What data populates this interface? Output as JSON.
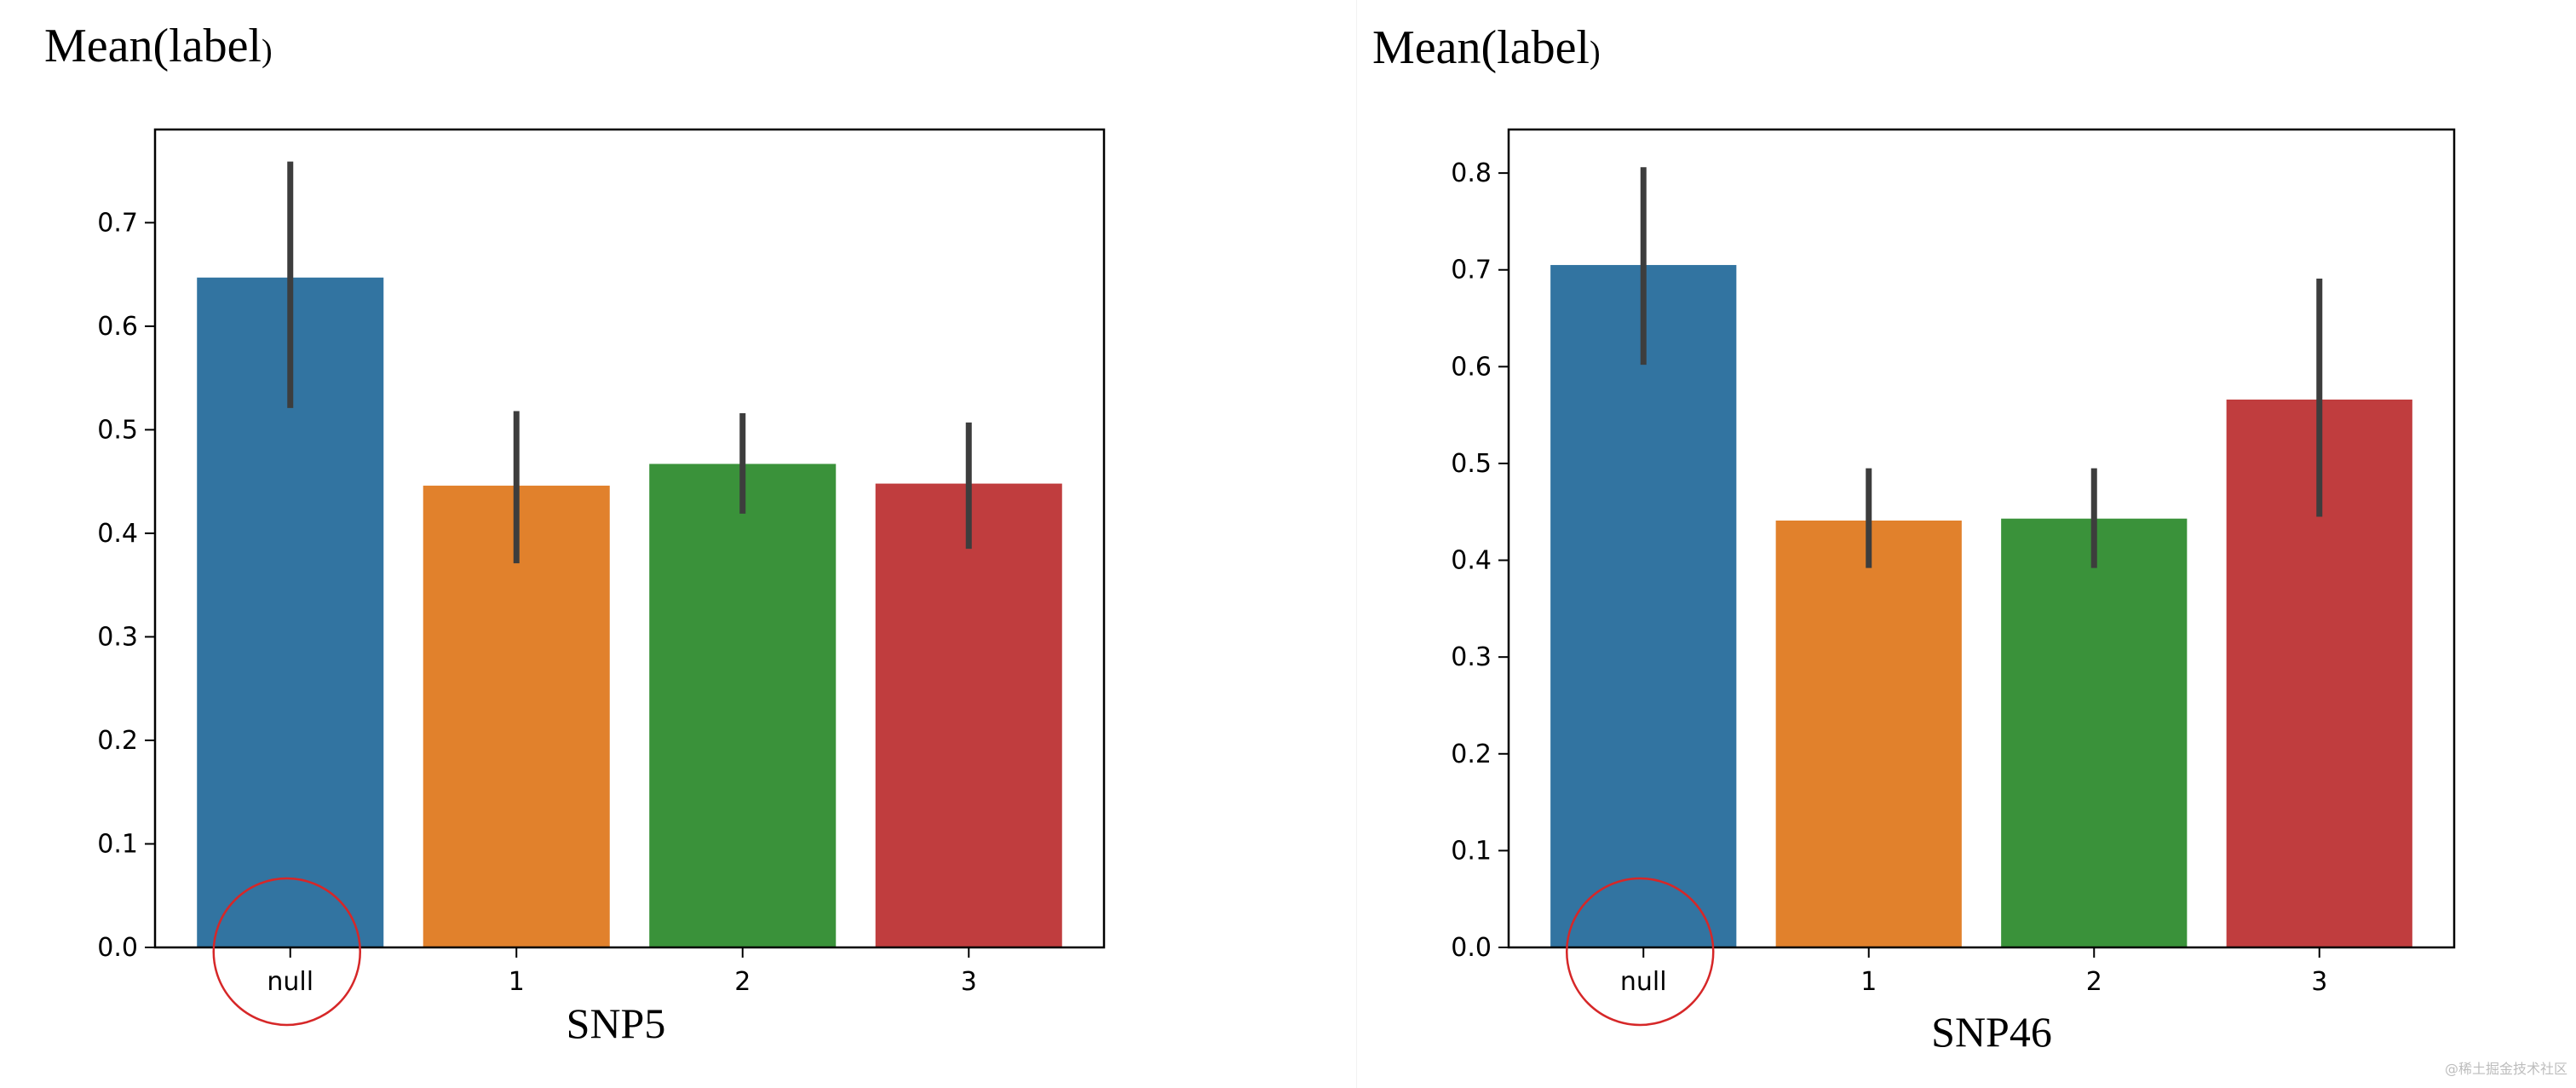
{
  "chart_data": [
    {
      "type": "bar",
      "ylabel": "Mean(label",
      "ylabel_suffix": ")",
      "xlabel": "SNP5",
      "categories": [
        "null",
        "1",
        "2",
        "3"
      ],
      "values": [
        0.647,
        0.446,
        0.467,
        0.448
      ],
      "error_low": [
        0.521,
        0.371,
        0.419,
        0.385
      ],
      "error_high": [
        0.759,
        0.518,
        0.516,
        0.507
      ],
      "colors": [
        "#3274a1",
        "#e1812c",
        "#3a923a",
        "#c03d3e"
      ],
      "ylim": [
        0,
        0.79
      ],
      "yticks": [
        0.0,
        0.1,
        0.2,
        0.3,
        0.4,
        0.5,
        0.6,
        0.7
      ],
      "annotation": "red circle around the null category label",
      "grid": false
    },
    {
      "type": "bar",
      "ylabel": "Mean(label",
      "ylabel_suffix": ")",
      "xlabel": "SNP46",
      "categories": [
        "null",
        "1",
        "2",
        "3"
      ],
      "values": [
        0.705,
        0.441,
        0.443,
        0.566
      ],
      "error_low": [
        0.602,
        0.392,
        0.392,
        0.445
      ],
      "error_high": [
        0.806,
        0.495,
        0.495,
        0.691
      ],
      "colors": [
        "#3274a1",
        "#e1812c",
        "#3a923a",
        "#c03d3e"
      ],
      "ylim": [
        0,
        0.845
      ],
      "yticks": [
        0.0,
        0.1,
        0.2,
        0.3,
        0.4,
        0.5,
        0.6,
        0.7,
        0.8
      ],
      "annotation": "red circle around the null category label",
      "grid": false
    }
  ],
  "annotation_color": "#d62728",
  "watermark": "@稀土掘金技术社区"
}
